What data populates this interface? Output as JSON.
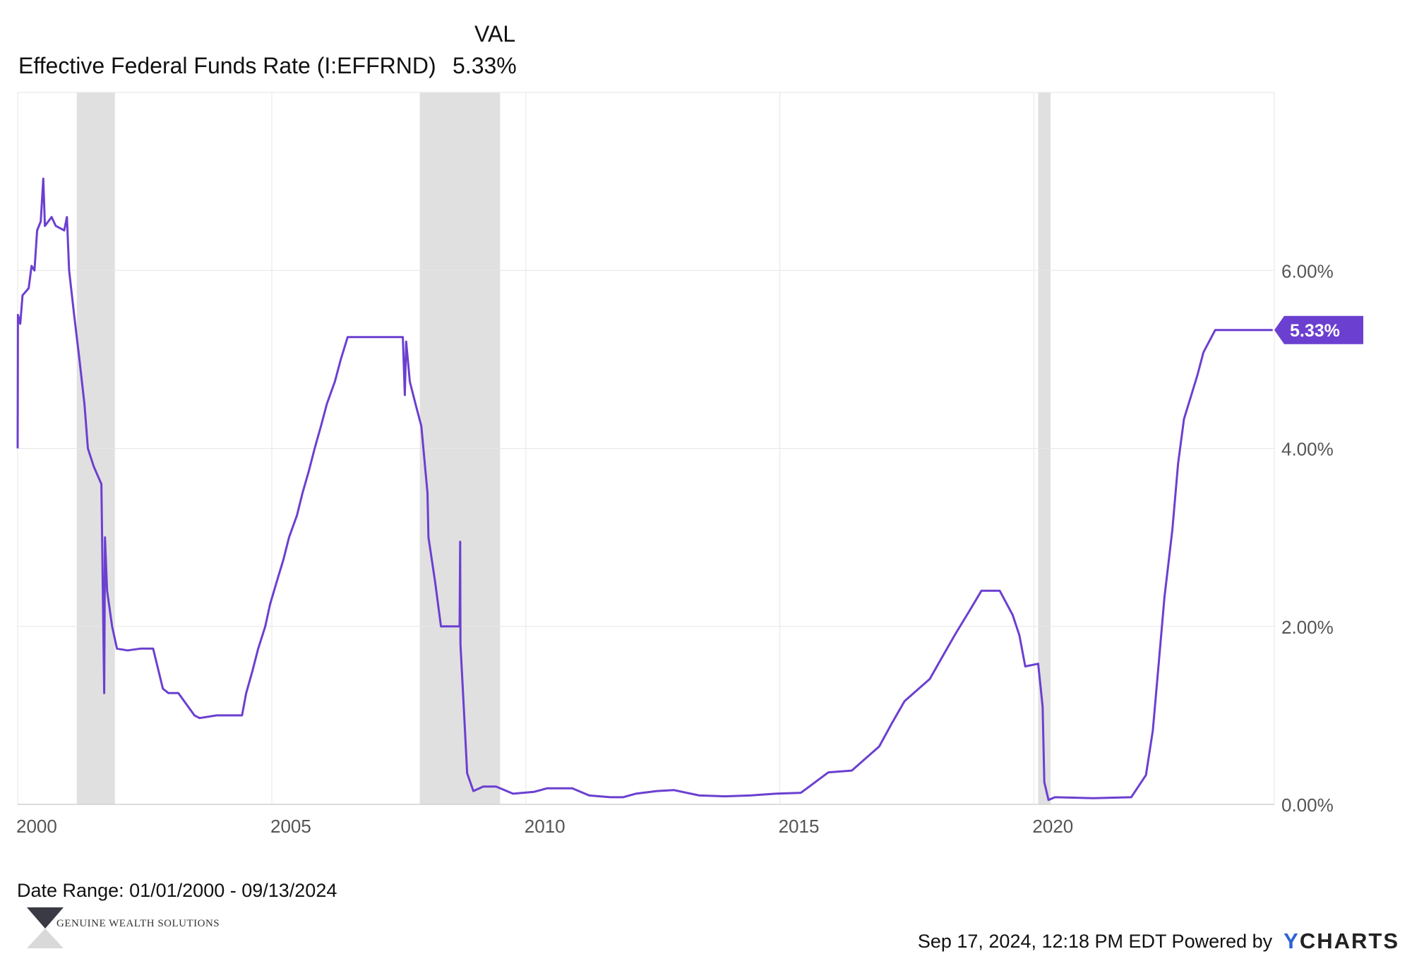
{
  "header": {
    "column_label": "VAL",
    "series_name": "Effective Federal Funds Rate (I:EFFRND)",
    "series_value": "5.33%"
  },
  "footer": {
    "date_range": "Date Range: 01/01/2000 - 09/13/2024",
    "timestamp": "Sep 17, 2024, 12:18 PM EDT Powered by",
    "ycharts_y": "Y",
    "ycharts_rest": "CHARTS",
    "brand_name": "GENUINE WEALTH SOLUTIONS"
  },
  "colors": {
    "series": "#6b3fd0",
    "recession": "#e0e0e0",
    "grid": "#e6e6e6",
    "brand_logo": "#3a3a44"
  },
  "chart_data": {
    "type": "line",
    "title": "Effective Federal Funds Rate (I:EFFRND)",
    "xlabel": "",
    "ylabel": "",
    "x_range": [
      "2000-01-01",
      "2024-09-13"
    ],
    "ylim": [
      0,
      8
    ],
    "x_ticks": [
      "2000",
      "2005",
      "2010",
      "2015",
      "2020"
    ],
    "y_ticks": [
      "0.00%",
      "2.00%",
      "4.00%",
      "6.00%"
    ],
    "y_axis_side": "right",
    "grid": true,
    "last_value_label": "5.33%",
    "recessions": [
      [
        "2001-03-01",
        "2001-11-30"
      ],
      [
        "2007-12-01",
        "2009-06-30"
      ],
      [
        "2020-02-01",
        "2020-04-30"
      ]
    ],
    "series": [
      {
        "name": "Effective Federal Funds Rate (I:EFFRND)",
        "color": "#6b3fd0",
        "points": [
          [
            "2000-01-01",
            4.0
          ],
          [
            "2000-01-03",
            5.5
          ],
          [
            "2000-01-20",
            5.4
          ],
          [
            "2000-02-05",
            5.72
          ],
          [
            "2000-03-20",
            5.8
          ],
          [
            "2000-04-10",
            6.05
          ],
          [
            "2000-05-01",
            6.0
          ],
          [
            "2000-05-20",
            6.45
          ],
          [
            "2000-06-15",
            6.55
          ],
          [
            "2000-07-03",
            7.03
          ],
          [
            "2000-07-15",
            6.5
          ],
          [
            "2000-09-01",
            6.6
          ],
          [
            "2000-10-01",
            6.5
          ],
          [
            "2000-12-01",
            6.45
          ],
          [
            "2000-12-20",
            6.6
          ],
          [
            "2001-01-05",
            6.0
          ],
          [
            "2001-02-10",
            5.5
          ],
          [
            "2001-03-20",
            5.0
          ],
          [
            "2001-04-25",
            4.5
          ],
          [
            "2001-05-20",
            4.0
          ],
          [
            "2001-06-30",
            3.8
          ],
          [
            "2001-08-25",
            3.6
          ],
          [
            "2001-09-14",
            1.25
          ],
          [
            "2001-09-20",
            3.0
          ],
          [
            "2001-10-05",
            2.4
          ],
          [
            "2001-11-10",
            2.0
          ],
          [
            "2001-12-15",
            1.75
          ],
          [
            "2002-03-01",
            1.73
          ],
          [
            "2002-06-01",
            1.75
          ],
          [
            "2002-09-01",
            1.75
          ],
          [
            "2002-11-10",
            1.3
          ],
          [
            "2002-12-20",
            1.25
          ],
          [
            "2003-03-01",
            1.25
          ],
          [
            "2003-06-25",
            1.0
          ],
          [
            "2003-08-01",
            0.97
          ],
          [
            "2003-12-01",
            1.0
          ],
          [
            "2004-03-01",
            1.0
          ],
          [
            "2004-06-01",
            1.0
          ],
          [
            "2004-07-01",
            1.25
          ],
          [
            "2004-08-15",
            1.5
          ],
          [
            "2004-09-25",
            1.75
          ],
          [
            "2004-11-15",
            2.0
          ],
          [
            "2004-12-20",
            2.25
          ],
          [
            "2005-02-05",
            2.5
          ],
          [
            "2005-03-25",
            2.75
          ],
          [
            "2005-05-05",
            3.0
          ],
          [
            "2005-07-01",
            3.25
          ],
          [
            "2005-08-10",
            3.5
          ],
          [
            "2005-09-25",
            3.75
          ],
          [
            "2005-11-05",
            4.0
          ],
          [
            "2005-12-20",
            4.25
          ],
          [
            "2006-02-01",
            4.5
          ],
          [
            "2006-03-30",
            4.75
          ],
          [
            "2006-05-12",
            5.0
          ],
          [
            "2006-06-30",
            5.25
          ],
          [
            "2006-12-01",
            5.25
          ],
          [
            "2007-06-01",
            5.25
          ],
          [
            "2007-08-01",
            5.25
          ],
          [
            "2007-08-15",
            4.6
          ],
          [
            "2007-08-25",
            5.2
          ],
          [
            "2007-09-20",
            4.75
          ],
          [
            "2007-10-31",
            4.5
          ],
          [
            "2007-12-12",
            4.25
          ],
          [
            "2008-01-25",
            3.5
          ],
          [
            "2008-02-01",
            3.0
          ],
          [
            "2008-03-20",
            2.5
          ],
          [
            "2008-05-01",
            2.0
          ],
          [
            "2008-07-01",
            2.0
          ],
          [
            "2008-09-12",
            2.0
          ],
          [
            "2008-09-16",
            2.95
          ],
          [
            "2008-09-18",
            1.8
          ],
          [
            "2008-10-15",
            1.0
          ],
          [
            "2008-11-05",
            0.35
          ],
          [
            "2008-12-20",
            0.15
          ],
          [
            "2009-03-01",
            0.2
          ],
          [
            "2009-06-01",
            0.2
          ],
          [
            "2009-10-01",
            0.12
          ],
          [
            "2010-03-01",
            0.14
          ],
          [
            "2010-06-01",
            0.18
          ],
          [
            "2010-12-01",
            0.18
          ],
          [
            "2011-04-01",
            0.1
          ],
          [
            "2011-09-01",
            0.08
          ],
          [
            "2011-12-01",
            0.08
          ],
          [
            "2012-03-01",
            0.12
          ],
          [
            "2012-08-01",
            0.15
          ],
          [
            "2012-12-01",
            0.16
          ],
          [
            "2013-06-01",
            0.1
          ],
          [
            "2013-12-01",
            0.09
          ],
          [
            "2014-06-01",
            0.1
          ],
          [
            "2014-12-01",
            0.12
          ],
          [
            "2015-06-01",
            0.13
          ],
          [
            "2015-12-16",
            0.36
          ],
          [
            "2016-06-01",
            0.38
          ],
          [
            "2016-12-15",
            0.65
          ],
          [
            "2017-03-16",
            0.91
          ],
          [
            "2017-06-15",
            1.16
          ],
          [
            "2017-12-14",
            1.41
          ],
          [
            "2018-03-22",
            1.68
          ],
          [
            "2018-06-14",
            1.91
          ],
          [
            "2018-09-27",
            2.18
          ],
          [
            "2018-12-20",
            2.4
          ],
          [
            "2019-05-01",
            2.4
          ],
          [
            "2019-08-01",
            2.13
          ],
          [
            "2019-09-19",
            1.9
          ],
          [
            "2019-10-31",
            1.55
          ],
          [
            "2020-02-01",
            1.58
          ],
          [
            "2020-03-04",
            1.1
          ],
          [
            "2020-03-16",
            0.25
          ],
          [
            "2020-04-15",
            0.05
          ],
          [
            "2020-06-01",
            0.08
          ],
          [
            "2021-03-01",
            0.07
          ],
          [
            "2021-12-01",
            0.08
          ],
          [
            "2022-03-17",
            0.33
          ],
          [
            "2022-05-05",
            0.83
          ],
          [
            "2022-06-16",
            1.58
          ],
          [
            "2022-07-28",
            2.33
          ],
          [
            "2022-09-22",
            3.08
          ],
          [
            "2022-11-03",
            3.83
          ],
          [
            "2022-12-15",
            4.33
          ],
          [
            "2023-02-02",
            4.58
          ],
          [
            "2023-03-23",
            4.83
          ],
          [
            "2023-05-04",
            5.08
          ],
          [
            "2023-07-27",
            5.33
          ],
          [
            "2024-09-13",
            5.33
          ]
        ]
      }
    ]
  }
}
